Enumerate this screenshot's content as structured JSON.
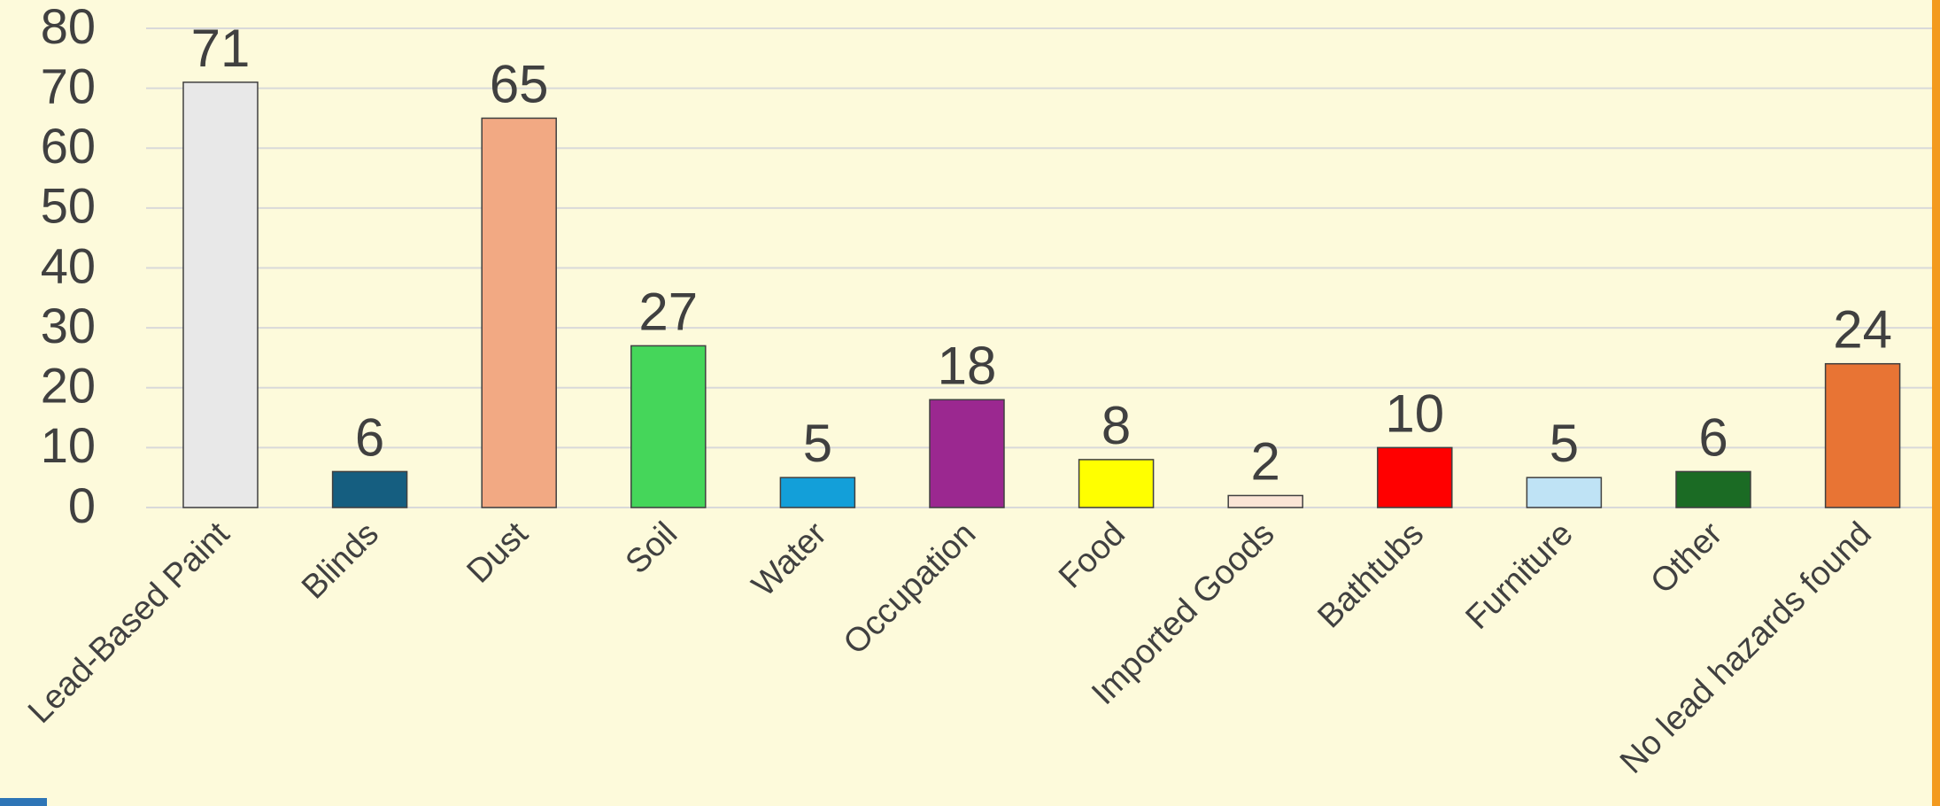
{
  "chart_data": {
    "type": "bar",
    "categories": [
      "Lead-Based Paint",
      "Blinds",
      "Dust",
      "Soil",
      "Water",
      "Occupation",
      "Food",
      "Imported Goods",
      "Bathtubs",
      "Furniture",
      "Other",
      "No lead hazards found"
    ],
    "values": [
      71,
      6,
      65,
      27,
      5,
      18,
      8,
      2,
      10,
      5,
      6,
      24
    ],
    "colors": [
      "#e8e8e8",
      "#155e80",
      "#f2a983",
      "#45d65a",
      "#139fd9",
      "#9b2890",
      "#ffff00",
      "#fbe5d6",
      "#ff0000",
      "#bfe3f5",
      "#1b6b24",
      "#e87434"
    ],
    "ylim": [
      0,
      80
    ],
    "yticks": [
      0,
      10,
      20,
      30,
      40,
      50,
      60,
      70,
      80
    ],
    "grid": true
  }
}
